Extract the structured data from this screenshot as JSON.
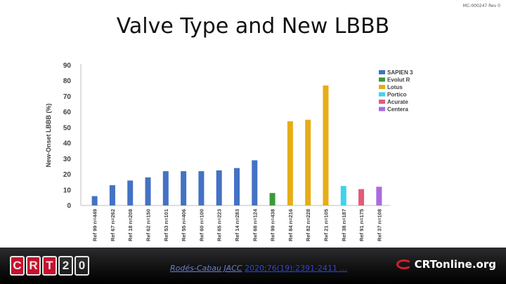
{
  "doc_id": "MC-000247 Rev 0",
  "slide_title": "Valve Type and New LBBB",
  "chart_data": {
    "type": "bar",
    "title": "Valve Type and New LBBB",
    "xlabel": "",
    "ylabel": "New-Onset LBBB (%)",
    "ylim": [
      0,
      90
    ],
    "yticks": [
      0,
      10,
      20,
      30,
      40,
      50,
      60,
      70,
      80,
      90
    ],
    "grid": false,
    "legend_position": "top-right",
    "categories": [
      "Ref 99 n=449",
      "Ref 67 n=262",
      "Ref 18 n=208",
      "Ref 62 n=150",
      "Ref 53 n=101",
      "Ref 55 n=406",
      "Ref 60 n=100",
      "Ref 65 n=223",
      "Ref 14 n=283",
      "Ref 68 n=124",
      "Ref 99 n=438",
      "Ref 84 n=216",
      "Ref 82 n=228",
      "Ref 21 n=105",
      "Ref 38 n=187",
      "Ref 91 n=175",
      "Ref 37 n=108"
    ],
    "values": [
      6,
      13,
      16,
      18,
      22,
      22,
      22,
      22.5,
      24,
      29,
      8,
      54,
      55,
      77,
      12.5,
      10.5,
      12
    ],
    "bar_series": [
      "SAPIEN 3",
      "SAPIEN 3",
      "SAPIEN 3",
      "SAPIEN 3",
      "SAPIEN 3",
      "SAPIEN 3",
      "SAPIEN 3",
      "SAPIEN 3",
      "SAPIEN 3",
      "SAPIEN 3",
      "Evolut R",
      "Lotus",
      "Lotus",
      "Lotus",
      "Portico",
      "Acurate",
      "Centera"
    ],
    "series": [
      {
        "name": "SAPIEN 3",
        "color": "#4472c4"
      },
      {
        "name": "Evolut R",
        "color": "#3a9a3a"
      },
      {
        "name": "Lotus",
        "color": "#e6ad17"
      },
      {
        "name": "Portico",
        "color": "#3fd3ea"
      },
      {
        "name": "Acurate",
        "color": "#e35a79"
      },
      {
        "name": "Centera",
        "color": "#a86be0"
      }
    ]
  },
  "footer": {
    "citation_plain": "Rodés-Cabau JACC",
    "citation_link": "2020;76(19):2391-2411 ...",
    "logo_letters": [
      "C",
      "R",
      "T",
      "2",
      "0"
    ],
    "crtonline_label": "CRTonline.org"
  }
}
